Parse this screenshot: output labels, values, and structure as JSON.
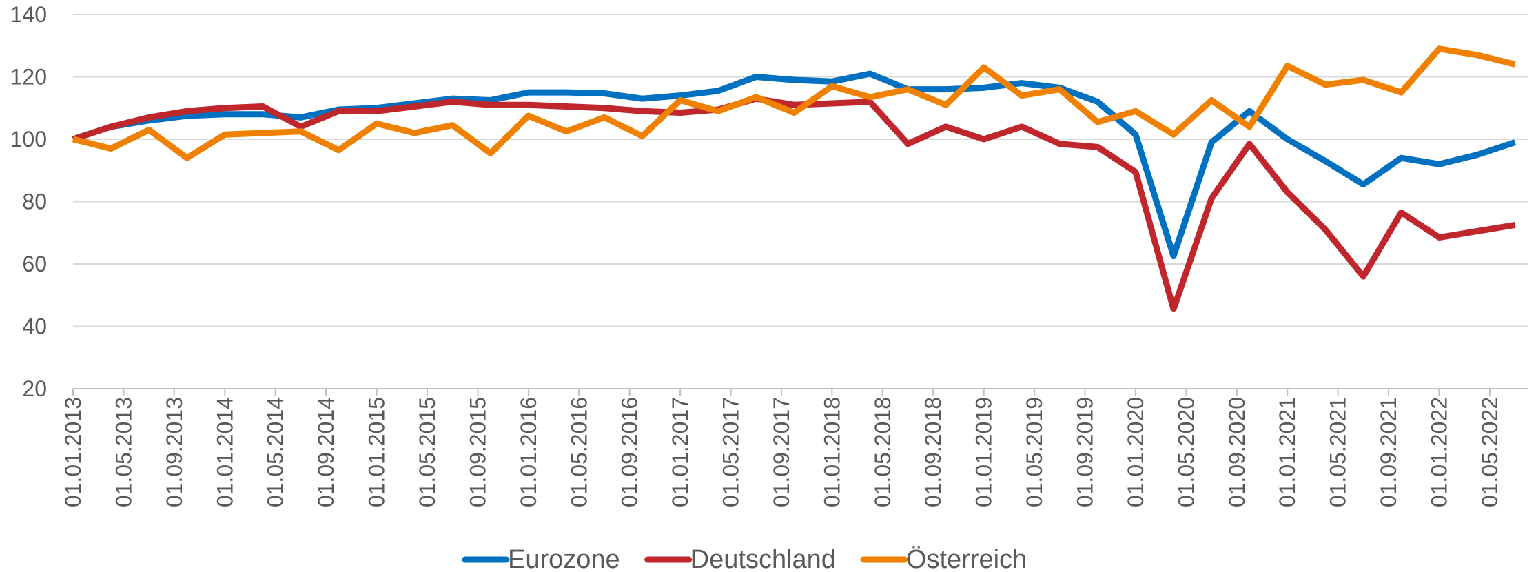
{
  "chart_data": {
    "type": "line",
    "x": [
      "01.01.2013",
      "01.04.2013",
      "01.07.2013",
      "01.10.2013",
      "01.01.2014",
      "01.04.2014",
      "01.07.2014",
      "01.10.2014",
      "01.01.2015",
      "01.04.2015",
      "01.07.2015",
      "01.10.2015",
      "01.01.2016",
      "01.04.2016",
      "01.07.2016",
      "01.10.2016",
      "01.01.2017",
      "01.04.2017",
      "01.07.2017",
      "01.10.2017",
      "01.01.2018",
      "01.04.2018",
      "01.07.2018",
      "01.10.2018",
      "01.01.2019",
      "01.04.2019",
      "01.07.2019",
      "01.10.2019",
      "01.01.2020",
      "01.04.2020",
      "01.07.2020",
      "01.10.2020",
      "01.01.2021",
      "01.04.2021",
      "01.07.2021",
      "01.10.2021",
      "01.01.2022",
      "01.04.2022",
      "01.07.2022"
    ],
    "xlim": [
      "01.01.2013",
      "01.08.2022"
    ],
    "xticks": [
      "01.01.2013",
      "01.05.2013",
      "01.09.2013",
      "01.01.2014",
      "01.05.2014",
      "01.09.2014",
      "01.01.2015",
      "01.05.2015",
      "01.09.2015",
      "01.01.2016",
      "01.05.2016",
      "01.09.2016",
      "01.01.2017",
      "01.05.2017",
      "01.09.2017",
      "01.01.2018",
      "01.05.2018",
      "01.09.2018",
      "01.01.2019",
      "01.05.2019",
      "01.09.2019",
      "01.01.2020",
      "01.05.2020",
      "01.09.2020",
      "01.01.2021",
      "01.05.2021",
      "01.09.2021",
      "01.01.2022",
      "01.05.2022"
    ],
    "ylim": [
      20,
      140
    ],
    "yticks": [
      20,
      40,
      60,
      80,
      100,
      120,
      140
    ],
    "grid": true,
    "legend": "bottom",
    "series": [
      {
        "name": "Eurozone",
        "color": "#0070c0",
        "values": [
          100,
          104,
          106,
          107.5,
          108,
          108,
          107,
          109.5,
          110,
          111.5,
          113,
          112.5,
          115,
          115,
          114.7,
          113,
          114,
          115.5,
          120,
          119,
          118.5,
          121,
          116,
          116,
          116.5,
          118,
          116.5,
          112,
          101.5,
          62.5,
          99,
          109,
          100,
          93,
          85.5,
          94,
          92,
          95,
          99
        ]
      },
      {
        "name": "Deutschland",
        "color": "#c0272d",
        "values": [
          100,
          104,
          107,
          109,
          110,
          110.5,
          104,
          109,
          109,
          110.5,
          112,
          111,
          111,
          110.5,
          110,
          109,
          108.5,
          109.5,
          113,
          111,
          111.5,
          112,
          98.5,
          104,
          100,
          104,
          98.5,
          97.5,
          89.5,
          45.5,
          81,
          98.5,
          83,
          71,
          56,
          76.5,
          68.5,
          70.5,
          72.5
        ]
      },
      {
        "name": "Österreich",
        "color": "#f08000",
        "values": [
          100,
          97,
          103,
          94,
          101.5,
          102,
          102.5,
          96.5,
          105,
          102,
          104.5,
          95.5,
          107.5,
          102.5,
          107,
          101,
          112.5,
          109,
          113.5,
          108.5,
          117,
          113.5,
          116,
          111,
          123,
          114,
          116,
          105.5,
          109,
          101.5,
          112.5,
          104,
          123.5,
          117.5,
          119,
          115,
          129,
          127,
          124
        ]
      }
    ]
  }
}
